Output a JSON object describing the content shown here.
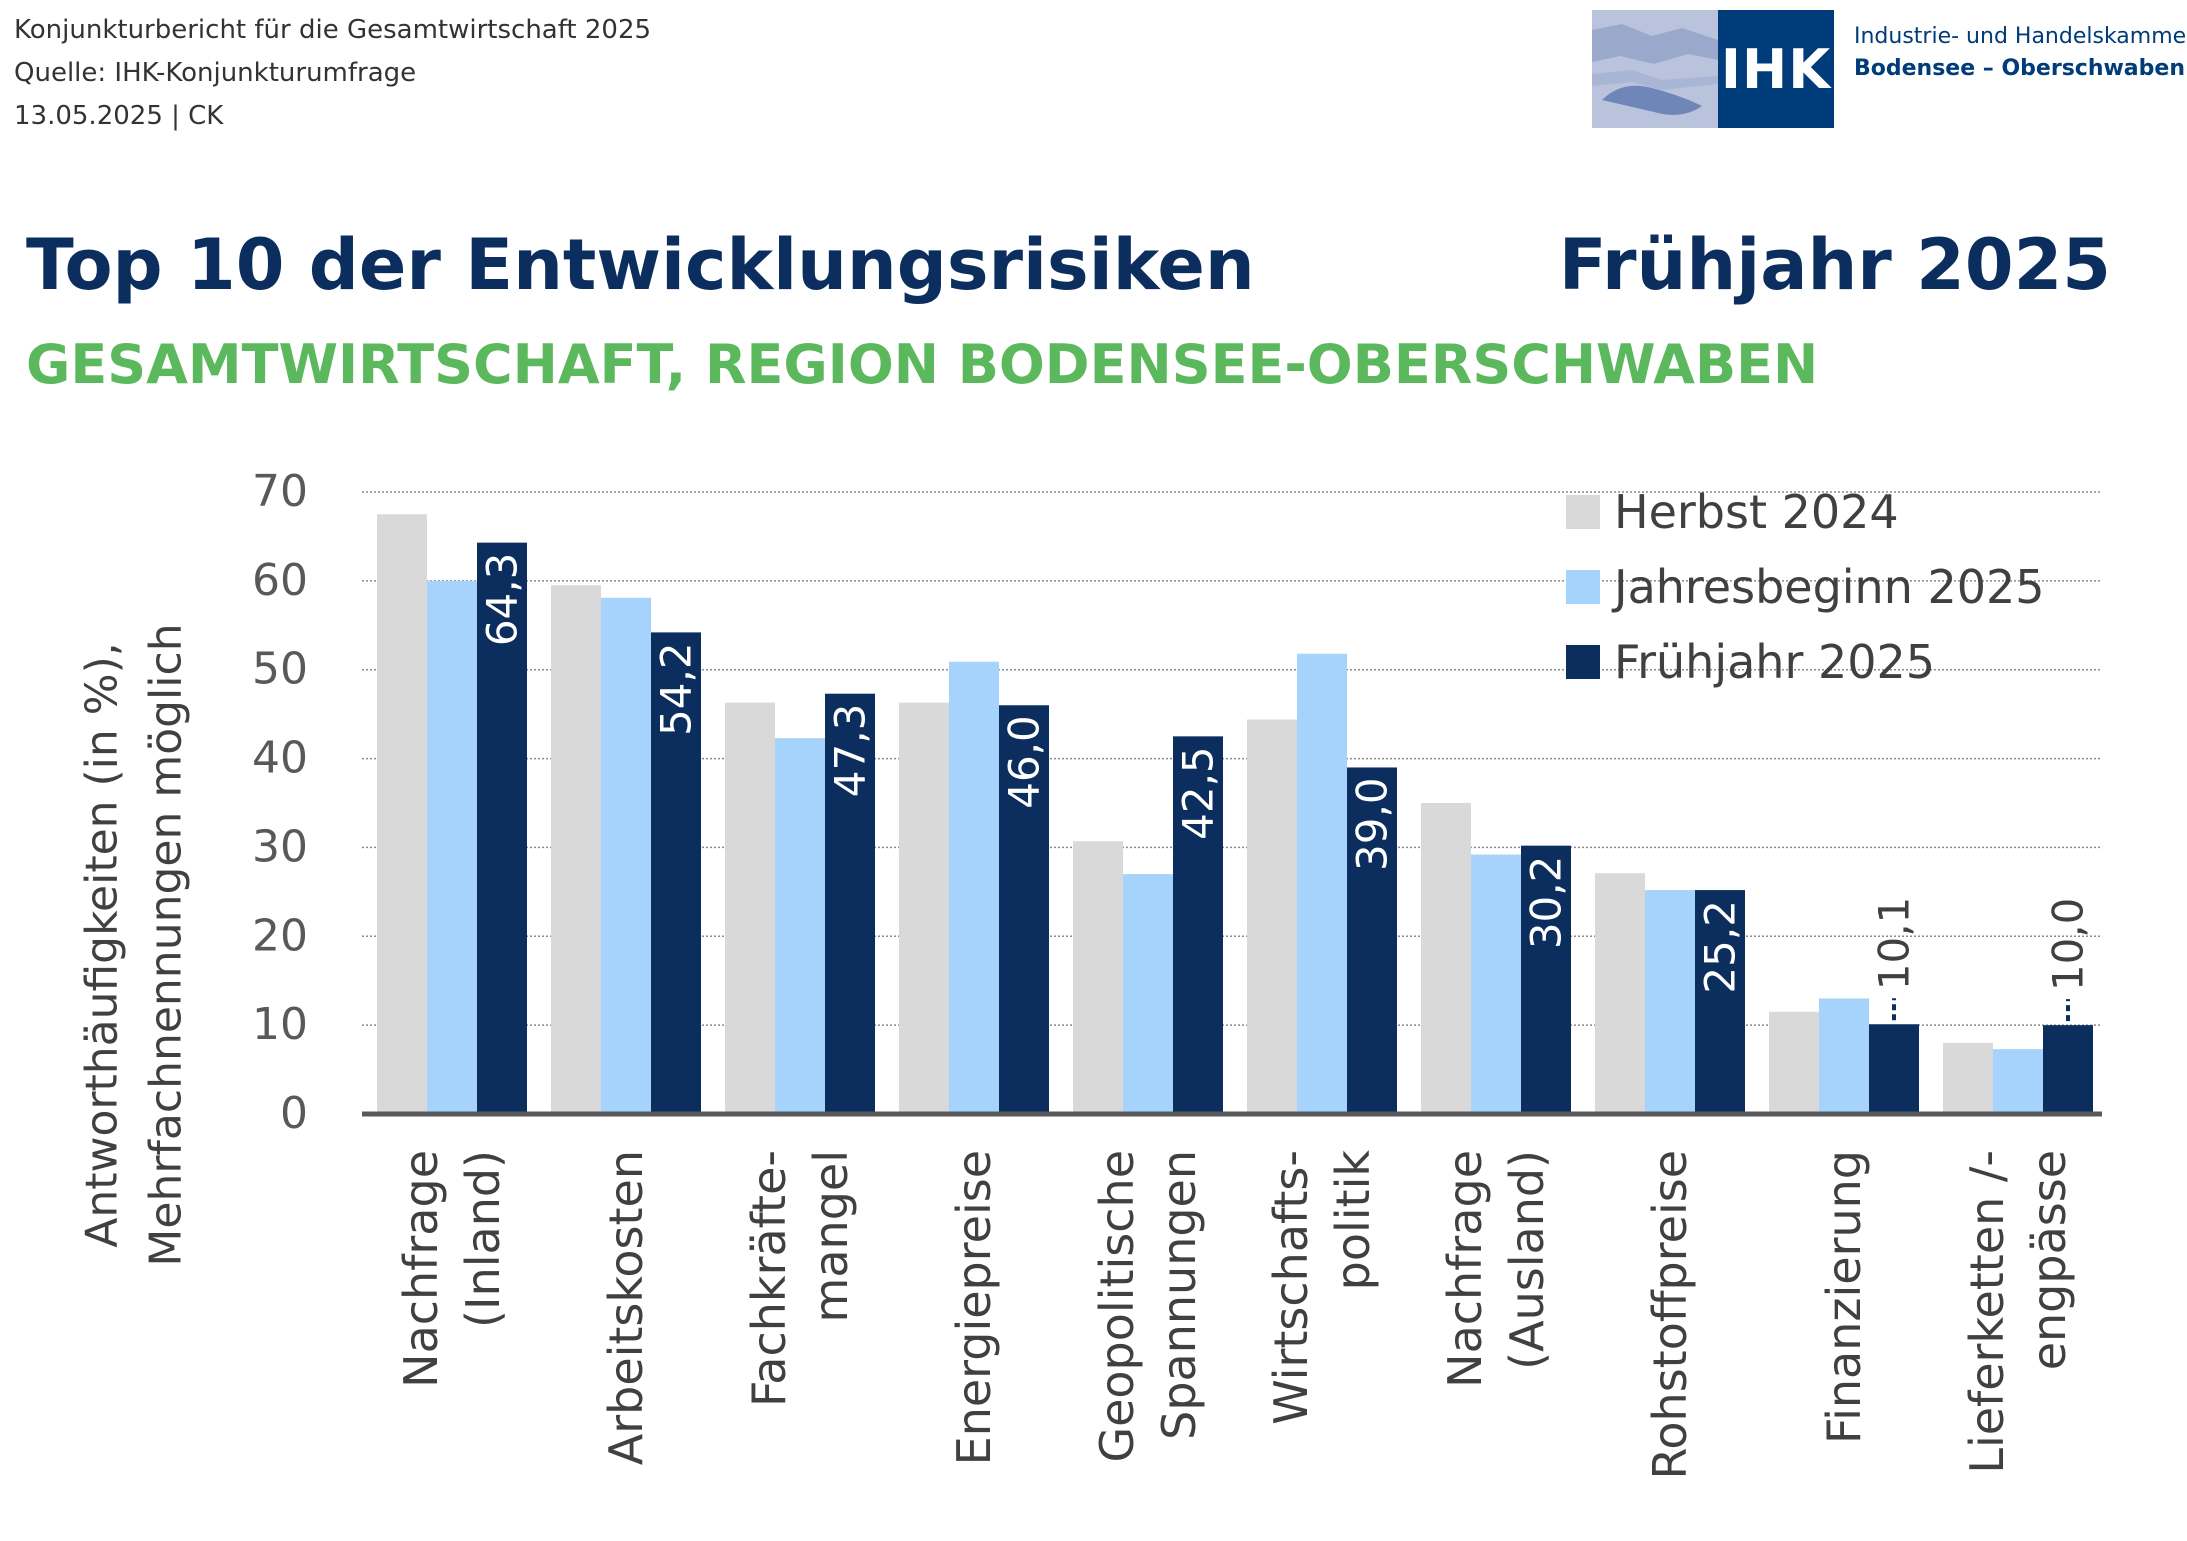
{
  "header": {
    "line1": "Konjunkturbericht für die Gesamtwirtschaft 2025",
    "line2": "Quelle: IHK-Konjunkturumfrage",
    "line3": "13.05.2025 | CK"
  },
  "logo": {
    "abbr": "IHK",
    "line1": "Industrie- und Handelskammer",
    "line2": "Bodensee – Oberschwaben"
  },
  "title": "Top 10 der Entwicklungsrisiken",
  "season": "Frühjahr 2025",
  "subtitle": "GESAMTWIRTSCHAFT, REGION BODENSEE-OBERSCHWABEN",
  "chart_data": {
    "type": "bar",
    "title": "Top 10 der Entwicklungsrisiken",
    "ylabel": [
      "Antworthäufigkeiten (in %),",
      "Mehrfachnennungen möglich"
    ],
    "ylim": [
      0,
      70
    ],
    "yticks": [
      0,
      10,
      20,
      30,
      40,
      50,
      60,
      70
    ],
    "grid": true,
    "legend_position": "top-right",
    "categories": [
      [
        "Nachfrage",
        "(Inland)"
      ],
      [
        "Arbeitskosten"
      ],
      [
        "Fachkräfte-",
        "mangel"
      ],
      [
        "Energiepreise"
      ],
      [
        "Geopolitische",
        "Spannungen"
      ],
      [
        "Wirtschafts-",
        "politik"
      ],
      [
        "Nachfrage",
        "(Ausland)"
      ],
      [
        "Rohstoffpreise"
      ],
      [
        "Finanzierung"
      ],
      [
        "Lieferketten /-",
        "engpässe"
      ]
    ],
    "series": [
      {
        "name": "Herbst 2024",
        "color": "#d9d9d9",
        "values": [
          67.5,
          59.5,
          46.3,
          46.3,
          30.7,
          44.4,
          35.0,
          27.1,
          11.5,
          8.0
        ]
      },
      {
        "name": "Jahresbeginn 2025",
        "color": "#a6d3fb",
        "values": [
          60.0,
          58.1,
          42.3,
          50.9,
          27.0,
          51.8,
          29.2,
          25.2,
          13.0,
          7.3
        ]
      },
      {
        "name": "Frühjahr 2025",
        "color": "#0b2e5e",
        "values": [
          64.3,
          54.2,
          47.3,
          46.0,
          42.5,
          39.0,
          30.2,
          25.2,
          10.1,
          10.0
        ],
        "labels": [
          "64,3",
          "54,2",
          "47,3",
          "46,0",
          "42,5",
          "39,0",
          "30,2",
          "25,2",
          "10,1",
          "10,0"
        ]
      }
    ]
  }
}
